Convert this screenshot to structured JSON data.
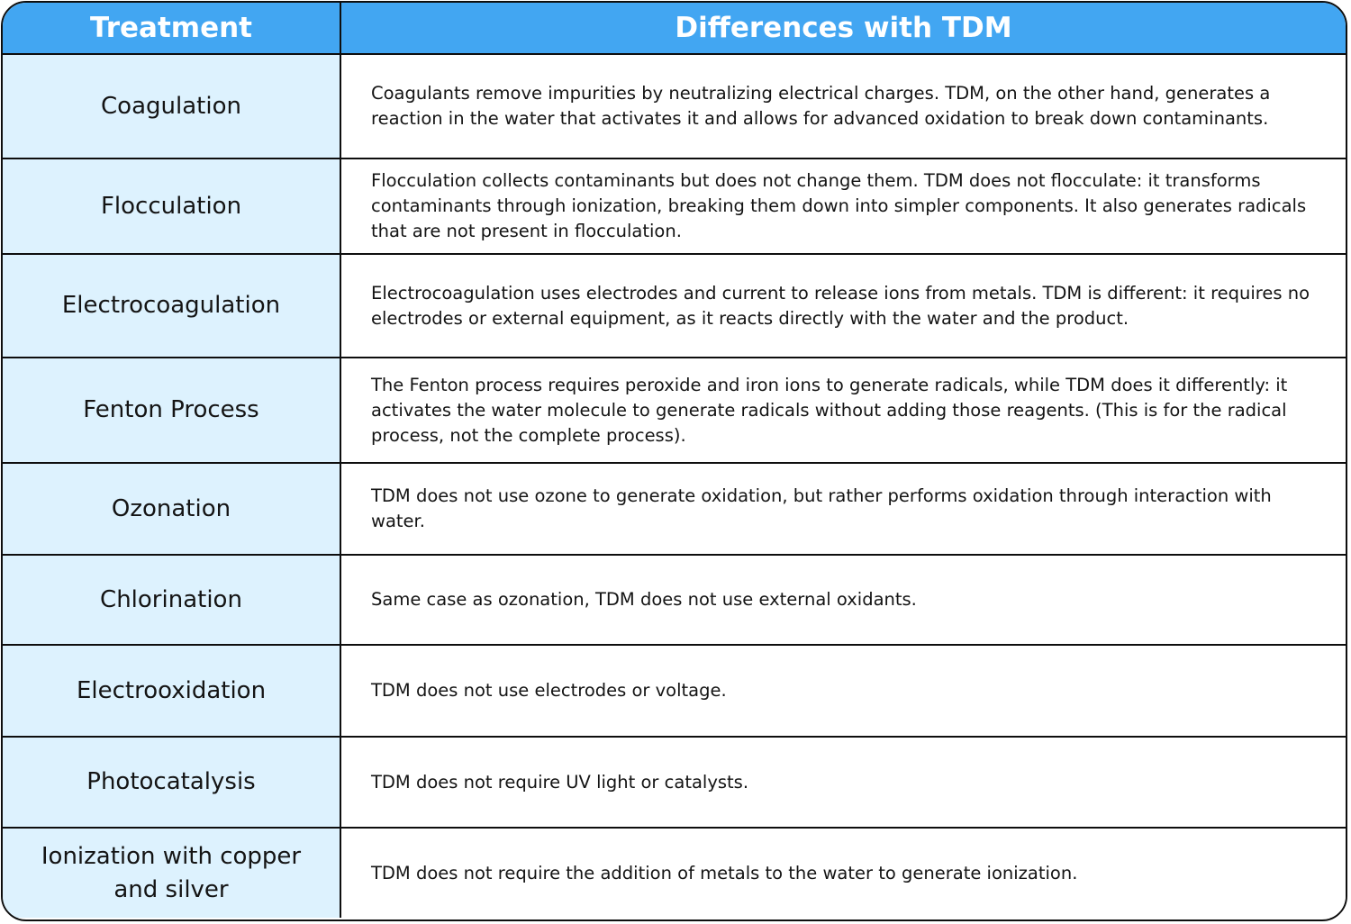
{
  "header": {
    "treatment_label": "Treatment",
    "differences_label": "Differences with TDM"
  },
  "colors": {
    "header_bg": "#42a6f2",
    "header_text": "#ffffff",
    "treatment_bg": "#ddf2fe",
    "border": "#0e0e0e"
  },
  "rows": [
    {
      "treatment": "Coagulation",
      "difference": "Coagulants remove impurities by neutralizing electrical charges. TDM, on the other hand, generates a reaction in the water that activates it and allows for advanced oxidation to break down contaminants."
    },
    {
      "treatment": "Flocculation",
      "difference": "Flocculation collects contaminants but does not change them. TDM does not flocculate: it transforms contaminants through ionization, breaking them down into simpler components. It also generates radicals that are not present in flocculation."
    },
    {
      "treatment": "Electrocoagulation",
      "difference": "Electrocoagulation uses electrodes and current to release ions from metals. TDM is different: it requires no electrodes or external equipment, as it reacts directly with the water and the product."
    },
    {
      "treatment": "Fenton Process",
      "difference": "The Fenton process requires peroxide and iron ions to generate radicals, while TDM does it differently: it activates the water molecule to generate radicals without adding those reagents. (This is for the radical process, not the complete process)."
    },
    {
      "treatment": "Ozonation",
      "difference": "TDM does not use ozone to generate oxidation, but rather performs oxidation through interaction with water."
    },
    {
      "treatment": "Chlorination",
      "difference": "Same case as ozonation, TDM does not use external oxidants."
    },
    {
      "treatment": "Electrooxidation",
      "difference": "TDM does not use electrodes or voltage."
    },
    {
      "treatment": "Photocatalysis",
      "difference": "TDM does not require UV light or catalysts."
    },
    {
      "treatment": "Ionization with copper and silver",
      "difference": "TDM does not require the addition of metals to the water to generate ionization."
    }
  ]
}
